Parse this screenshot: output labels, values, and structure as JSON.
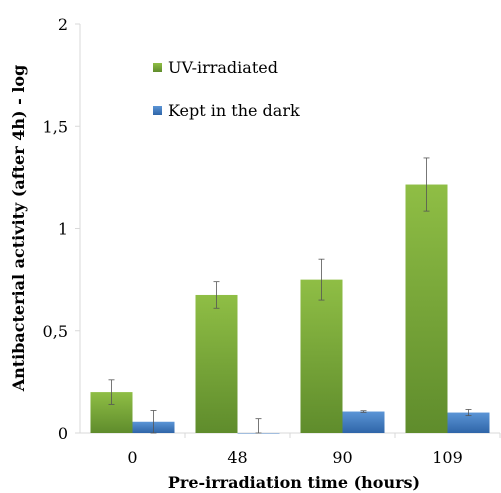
{
  "chart_data": {
    "type": "bar",
    "xlabel": "Pre-irradiation time (hours)",
    "ylabel": "Antibacterial activity (after 4h) - log",
    "categories": [
      "0",
      "48",
      "90",
      "109"
    ],
    "ylim": [
      0,
      2
    ],
    "yticks": [
      "0",
      "0,5",
      "1",
      "1,5",
      "2"
    ],
    "grid": false,
    "legend_position": "top-left",
    "series": [
      {
        "name": "UV-irradiated",
        "color": "#7aa53a",
        "values": [
          0.2,
          0.675,
          0.75,
          1.215
        ],
        "errors": [
          0.06,
          0.065,
          0.1,
          0.13
        ]
      },
      {
        "name": "Kept in the dark",
        "color": "#3f7bc1",
        "values": [
          0.055,
          0.0,
          0.105,
          0.1
        ],
        "errors": [
          0.055,
          0.07,
          0.004,
          0.015
        ]
      }
    ]
  }
}
